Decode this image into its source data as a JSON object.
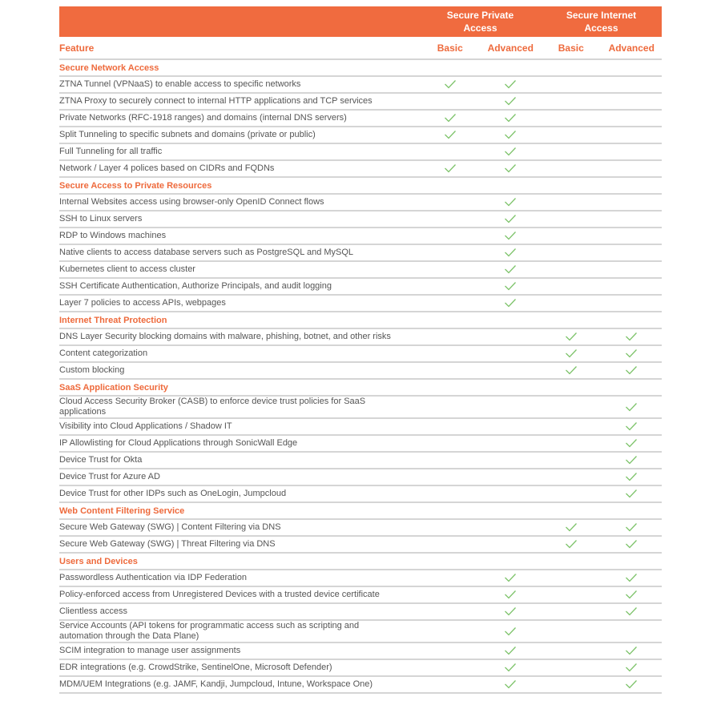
{
  "header": {
    "group1": "Secure Private Access",
    "group2": "Secure Internet Access",
    "feature": "Feature",
    "cols": [
      "Basic",
      "Advanced",
      "Basic",
      "Advanced"
    ]
  },
  "colors": {
    "accent": "#F06B3F",
    "check": "#7DC36A",
    "text": "#555555"
  },
  "check_icon": "checkmark-icon",
  "sections": [
    {
      "title": "Secure Network Access",
      "rows": [
        {
          "feature": "ZTNA Tunnel (VPNaaS) to enable access to specific networks",
          "checks": [
            true,
            true,
            false,
            false
          ]
        },
        {
          "feature": "ZTNA Proxy to securely connect to internal HTTP applications and TCP services",
          "checks": [
            false,
            true,
            false,
            false
          ]
        },
        {
          "feature": "Private Networks (RFC-1918 ranges) and domains (internal DNS servers)",
          "checks": [
            true,
            true,
            false,
            false
          ]
        },
        {
          "feature": "Split Tunneling to specific subnets and domains (private or public)",
          "checks": [
            true,
            true,
            false,
            false
          ]
        },
        {
          "feature": "Full Tunneling for all traffic",
          "checks": [
            false,
            true,
            false,
            false
          ]
        },
        {
          "feature": "Network / Layer 4 polices based on CIDRs and FQDNs",
          "checks": [
            true,
            true,
            false,
            false
          ]
        }
      ]
    },
    {
      "title": "Secure Access to Private Resources",
      "rows": [
        {
          "feature": "Internal Websites access using browser-only OpenID Connect flows",
          "checks": [
            false,
            true,
            false,
            false
          ]
        },
        {
          "feature": "SSH to Linux servers",
          "checks": [
            false,
            true,
            false,
            false
          ]
        },
        {
          "feature": "RDP to Windows machines",
          "checks": [
            false,
            true,
            false,
            false
          ]
        },
        {
          "feature": "Native clients to access database servers such as PostgreSQL and MySQL",
          "checks": [
            false,
            true,
            false,
            false
          ]
        },
        {
          "feature": "Kubernetes client to access cluster",
          "checks": [
            false,
            true,
            false,
            false
          ]
        },
        {
          "feature": "SSH Certificate Authentication, Authorize Principals, and audit logging",
          "checks": [
            false,
            true,
            false,
            false
          ]
        },
        {
          "feature": "Layer 7 policies to access APIs, webpages",
          "checks": [
            false,
            true,
            false,
            false
          ]
        }
      ]
    },
    {
      "title": "Internet Threat Protection",
      "rows": [
        {
          "feature": "DNS Layer Security blocking domains with malware, phishing, botnet, and other risks",
          "checks": [
            false,
            false,
            true,
            true
          ]
        },
        {
          "feature": "Content categorization",
          "checks": [
            false,
            false,
            true,
            true
          ]
        },
        {
          "feature": "Custom blocking",
          "checks": [
            false,
            false,
            true,
            true
          ]
        }
      ]
    },
    {
      "title": "SaaS Application Security",
      "rows": [
        {
          "feature": "Cloud Access Security Broker (CASB) to enforce device trust policies for SaaS applications",
          "checks": [
            false,
            false,
            false,
            true
          ]
        },
        {
          "feature": "Visibility into Cloud Applications / Shadow IT",
          "checks": [
            false,
            false,
            false,
            true
          ]
        },
        {
          "feature": "IP Allowlisting for Cloud Applications through SonicWall Edge",
          "checks": [
            false,
            false,
            false,
            true
          ]
        },
        {
          "feature": "Device Trust for Okta",
          "checks": [
            false,
            false,
            false,
            true
          ]
        },
        {
          "feature": "Device Trust for Azure AD",
          "checks": [
            false,
            false,
            false,
            true
          ]
        },
        {
          "feature": "Device Trust for other IDPs such as OneLogin, Jumpcloud",
          "checks": [
            false,
            false,
            false,
            true
          ]
        }
      ]
    },
    {
      "title": "Web Content Filtering Service",
      "rows": [
        {
          "feature": "Secure Web Gateway (SWG) | Content Filtering via DNS",
          "checks": [
            false,
            false,
            true,
            true
          ]
        },
        {
          "feature": "Secure Web Gateway (SWG) | Threat Filtering via DNS",
          "checks": [
            false,
            false,
            true,
            true
          ]
        }
      ]
    },
    {
      "title": "Users and Devices",
      "rows": [
        {
          "feature": "Passwordless Authentication via IDP Federation",
          "checks": [
            false,
            true,
            false,
            true
          ]
        },
        {
          "feature": "Policy-enforced access from Unregistered Devices with a trusted device certificate",
          "checks": [
            false,
            true,
            false,
            true
          ]
        },
        {
          "feature": "Clientless access",
          "checks": [
            false,
            true,
            false,
            true
          ]
        },
        {
          "feature": "Service Accounts (API tokens for programmatic access such as scripting and automation through the Data Plane)",
          "checks": [
            false,
            true,
            false,
            false
          ]
        },
        {
          "feature": "SCIM integration to manage user assignments",
          "checks": [
            false,
            true,
            false,
            true
          ]
        },
        {
          "feature": "EDR integrations (e.g. CrowdStrike, SentinelOne, Microsoft Defender)",
          "checks": [
            false,
            true,
            false,
            true
          ]
        },
        {
          "feature": "MDM/UEM Integrations (e.g. JAMF, Kandji, Jumpcloud, Intune, Workspace One)",
          "checks": [
            false,
            true,
            false,
            true
          ]
        }
      ]
    }
  ]
}
